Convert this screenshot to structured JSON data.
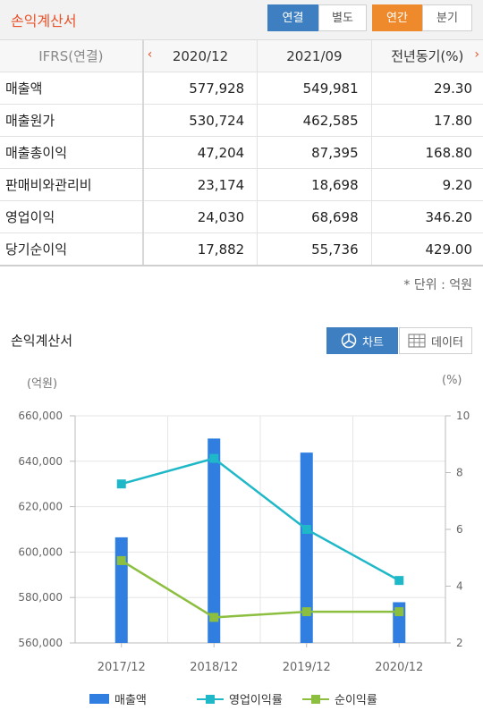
{
  "header": {
    "title": "손익계산서",
    "tab_consolidated": "연결",
    "tab_separate": "별도",
    "tab_annual": "연간",
    "tab_quarter": "분기"
  },
  "table": {
    "col0": "IFRS(연결)",
    "cols": [
      "2020/12",
      "2021/09",
      "전년동기(%)"
    ],
    "rows": [
      {
        "label": "매출액",
        "v": [
          "577,928",
          "549,981",
          "29.30"
        ]
      },
      {
        "label": "매출원가",
        "v": [
          "530,724",
          "462,585",
          "17.80"
        ]
      },
      {
        "label": "매출총이익",
        "v": [
          "47,204",
          "87,395",
          "168.80"
        ]
      },
      {
        "label": "판매비와관리비",
        "v": [
          "23,174",
          "18,698",
          "9.20"
        ]
      },
      {
        "label": "영업이익",
        "v": [
          "24,030",
          "68,698",
          "346.20"
        ]
      },
      {
        "label": "당기순이익",
        "v": [
          "17,882",
          "55,736",
          "429.00"
        ]
      }
    ]
  },
  "unit_note": "* 단위 : 억원",
  "section_title": "손익계산서",
  "view_chart": "차트",
  "view_data": "데이터",
  "colors": {
    "bar": "#2f7ee0",
    "op": "#1fb8c8",
    "net": "#8cbf3f",
    "accent": "#e8532a"
  },
  "chart_data": {
    "type": "bar",
    "categories": [
      "2017/12",
      "2018/12",
      "2019/12",
      "2020/12"
    ],
    "left_unit": "(억원)",
    "right_unit": "(%)",
    "ylim_left": [
      560000,
      660000
    ],
    "yticks_left": [
      "560,000",
      "580,000",
      "600,000",
      "620,000",
      "640,000",
      "660,000"
    ],
    "ylim_right": [
      2,
      10
    ],
    "yticks_right": [
      "2",
      "4",
      "6",
      "8",
      "10"
    ],
    "series": [
      {
        "name": "매출액",
        "type": "bar",
        "axis": "left",
        "values": [
          606500,
          650000,
          643800,
          577928
        ]
      },
      {
        "name": "영업이익률",
        "type": "line",
        "axis": "right",
        "values": [
          7.6,
          8.5,
          6.0,
          4.2
        ]
      },
      {
        "name": "순이익률",
        "type": "line",
        "axis": "right",
        "values": [
          4.9,
          2.9,
          3.1,
          3.1
        ]
      }
    ],
    "grid": true,
    "legend_position": "bottom"
  }
}
